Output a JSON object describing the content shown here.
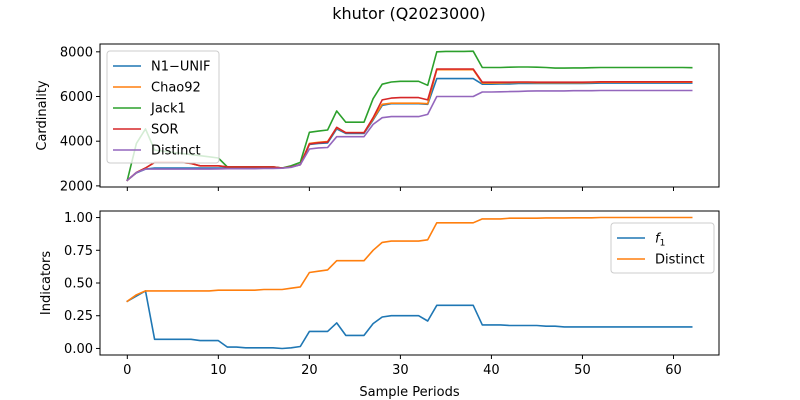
{
  "title": "khutor (Q2023000)",
  "colors": {
    "blue": "#1f77b4",
    "orange": "#ff7f0e",
    "green": "#2ca02c",
    "red": "#d62728",
    "purple": "#9467bd"
  },
  "chart_data": [
    {
      "type": "line",
      "xlabel": "",
      "ylabel": "Cardinality",
      "xlim": [
        -3,
        65
      ],
      "ylim": [
        1950,
        8350
      ],
      "xticks": [
        0,
        10,
        20,
        30,
        40,
        50,
        60
      ],
      "yticks": [
        2000,
        4000,
        6000,
        8000
      ],
      "legend": "top-left",
      "grid": false,
      "series": [
        {
          "name": "N1−UNIF",
          "color": "#1f77b4",
          "x": [
            0,
            1,
            2,
            3,
            4,
            5,
            6,
            7,
            8,
            9,
            10,
            11,
            12,
            13,
            14,
            15,
            16,
            17,
            18,
            19,
            20,
            21,
            22,
            23,
            24,
            25,
            26,
            27,
            28,
            29,
            30,
            31,
            32,
            33,
            34,
            35,
            36,
            37,
            38,
            39,
            40,
            41,
            42,
            43,
            44,
            45,
            46,
            47,
            48,
            49,
            50,
            51,
            52,
            53,
            54,
            55,
            56,
            57,
            58,
            59,
            60,
            61,
            62
          ],
          "y": [
            2250,
            2580,
            2750,
            2800,
            2800,
            2800,
            2800,
            2800,
            2800,
            2800,
            2800,
            2800,
            2800,
            2800,
            2800,
            2800,
            2800,
            2800,
            2850,
            2950,
            3850,
            3900,
            3920,
            4550,
            4350,
            4350,
            4350,
            4950,
            5600,
            5680,
            5680,
            5680,
            5680,
            5650,
            6800,
            6800,
            6800,
            6800,
            6800,
            6550,
            6550,
            6560,
            6560,
            6580,
            6580,
            6580,
            6580,
            6580,
            6580,
            6580,
            6580,
            6590,
            6600,
            6600,
            6600,
            6600,
            6600,
            6600,
            6600,
            6600,
            6600,
            6600,
            6600
          ]
        },
        {
          "name": "Chao92",
          "color": "#ff7f0e",
          "x": [
            0,
            1,
            2,
            3,
            4,
            5,
            6,
            7,
            8,
            9,
            10,
            11,
            12,
            13,
            14,
            15,
            16,
            17,
            18,
            19,
            20,
            21,
            22,
            23,
            24,
            25,
            26,
            27,
            28,
            29,
            30,
            31,
            32,
            33,
            34,
            35,
            36,
            37,
            38,
            39,
            40,
            41,
            42,
            43,
            44,
            45,
            46,
            47,
            48,
            49,
            50,
            51,
            52,
            53,
            54,
            55,
            56,
            57,
            58,
            59,
            60,
            61,
            62
          ],
          "y": [
            2250,
            2600,
            2800,
            3050,
            3050,
            3050,
            3050,
            3000,
            2900,
            2900,
            2900,
            2850,
            2850,
            2850,
            2850,
            2850,
            2850,
            2800,
            2850,
            2950,
            3900,
            3950,
            3980,
            4600,
            4380,
            4380,
            4380,
            5000,
            5650,
            5700,
            5700,
            5700,
            5700,
            5680,
            7200,
            7200,
            7200,
            7200,
            7200,
            6600,
            6600,
            6610,
            6620,
            6630,
            6630,
            6620,
            6620,
            6620,
            6620,
            6620,
            6620,
            6630,
            6640,
            6640,
            6640,
            6640,
            6640,
            6640,
            6640,
            6640,
            6640,
            6640,
            6640
          ]
        },
        {
          "name": "Jack1",
          "color": "#2ca02c",
          "x": [
            0,
            1,
            2,
            3,
            4,
            5,
            6,
            7,
            8,
            9,
            10,
            11,
            12,
            13,
            14,
            15,
            16,
            17,
            18,
            19,
            20,
            21,
            22,
            23,
            24,
            25,
            26,
            27,
            28,
            29,
            30,
            31,
            32,
            33,
            34,
            35,
            36,
            37,
            38,
            39,
            40,
            41,
            42,
            43,
            44,
            45,
            46,
            47,
            48,
            49,
            50,
            51,
            52,
            53,
            54,
            55,
            56,
            57,
            58,
            59,
            60,
            61,
            62
          ],
          "y": [
            2250,
            3900,
            4550,
            3600,
            3550,
            3500,
            3450,
            3400,
            3350,
            3300,
            3250,
            2850,
            2850,
            2850,
            2850,
            2850,
            2850,
            2800,
            2900,
            3050,
            4400,
            4450,
            4500,
            5350,
            4850,
            4850,
            4850,
            5900,
            6550,
            6650,
            6680,
            6680,
            6680,
            6500,
            8000,
            8020,
            8020,
            8020,
            8030,
            7300,
            7300,
            7300,
            7310,
            7320,
            7320,
            7310,
            7300,
            7270,
            7270,
            7280,
            7280,
            7290,
            7300,
            7300,
            7300,
            7300,
            7300,
            7300,
            7300,
            7300,
            7300,
            7300,
            7290
          ]
        },
        {
          "name": "SOR",
          "color": "#d62728",
          "x": [
            0,
            1,
            2,
            3,
            4,
            5,
            6,
            7,
            8,
            9,
            10,
            11,
            12,
            13,
            14,
            15,
            16,
            17,
            18,
            19,
            20,
            21,
            22,
            23,
            24,
            25,
            26,
            27,
            28,
            29,
            30,
            31,
            32,
            33,
            34,
            35,
            36,
            37,
            38,
            39,
            40,
            41,
            42,
            43,
            44,
            45,
            46,
            47,
            48,
            49,
            50,
            51,
            52,
            53,
            54,
            55,
            56,
            57,
            58,
            59,
            60,
            61,
            62
          ],
          "y": [
            2250,
            2600,
            2800,
            3050,
            3050,
            3050,
            3050,
            3000,
            2900,
            2900,
            2900,
            2850,
            2850,
            2850,
            2850,
            2850,
            2850,
            2800,
            2850,
            2950,
            3880,
            3930,
            3960,
            4620,
            4380,
            4380,
            4380,
            5050,
            5850,
            5930,
            5950,
            5950,
            5950,
            5850,
            7230,
            7230,
            7230,
            7230,
            7230,
            6640,
            6640,
            6640,
            6640,
            6650,
            6650,
            6640,
            6640,
            6640,
            6640,
            6640,
            6640,
            6650,
            6660,
            6660,
            6660,
            6660,
            6660,
            6660,
            6660,
            6660,
            6660,
            6660,
            6660
          ]
        },
        {
          "name": "Distinct",
          "color": "#9467bd",
          "x": [
            0,
            1,
            2,
            3,
            4,
            5,
            6,
            7,
            8,
            9,
            10,
            11,
            12,
            13,
            14,
            15,
            16,
            17,
            18,
            19,
            20,
            21,
            22,
            23,
            24,
            25,
            26,
            27,
            28,
            29,
            30,
            31,
            32,
            33,
            34,
            35,
            36,
            37,
            38,
            39,
            40,
            41,
            42,
            43,
            44,
            45,
            46,
            47,
            48,
            49,
            50,
            51,
            52,
            53,
            54,
            55,
            56,
            57,
            58,
            59,
            60,
            61,
            62
          ],
          "y": [
            2250,
            2600,
            2750,
            2750,
            2750,
            2750,
            2750,
            2750,
            2750,
            2750,
            2760,
            2770,
            2770,
            2770,
            2770,
            2780,
            2780,
            2790,
            2830,
            2950,
            3650,
            3700,
            3720,
            4200,
            4200,
            4200,
            4200,
            4750,
            5050,
            5100,
            5100,
            5100,
            5100,
            5200,
            6000,
            6000,
            6000,
            6000,
            6000,
            6200,
            6200,
            6210,
            6220,
            6230,
            6240,
            6250,
            6250,
            6250,
            6250,
            6260,
            6260,
            6260,
            6270,
            6270,
            6270,
            6270,
            6270,
            6270,
            6270,
            6270,
            6270,
            6270,
            6270
          ]
        }
      ]
    },
    {
      "type": "line",
      "xlabel": "Sample Periods",
      "ylabel": "Indicators",
      "xlim": [
        -3,
        65
      ],
      "ylim": [
        -0.05,
        1.05
      ],
      "xticks": [
        0,
        10,
        20,
        30,
        40,
        50,
        60
      ],
      "yticks": [
        0.0,
        0.25,
        0.5,
        0.75,
        1.0
      ],
      "ytick_labels": [
        "0.00",
        "0.25",
        "0.50",
        "0.75",
        "1.00"
      ],
      "legend": "top-right",
      "grid": false,
      "series": [
        {
          "name": "f1",
          "label_main": "f",
          "label_sub": "1",
          "color": "#1f77b4",
          "x": [
            0,
            1,
            2,
            3,
            4,
            5,
            6,
            7,
            8,
            9,
            10,
            11,
            12,
            13,
            14,
            15,
            16,
            17,
            18,
            19,
            20,
            21,
            22,
            23,
            24,
            25,
            26,
            27,
            28,
            29,
            30,
            31,
            32,
            33,
            34,
            35,
            36,
            37,
            38,
            39,
            40,
            41,
            42,
            43,
            44,
            45,
            46,
            47,
            48,
            49,
            50,
            51,
            52,
            53,
            54,
            55,
            56,
            57,
            58,
            59,
            60,
            61,
            62
          ],
          "y": [
            0.36,
            0.4,
            0.44,
            0.07,
            0.07,
            0.07,
            0.07,
            0.07,
            0.06,
            0.06,
            0.06,
            0.01,
            0.01,
            0.005,
            0.005,
            0.005,
            0.005,
            0.0,
            0.005,
            0.015,
            0.13,
            0.13,
            0.13,
            0.195,
            0.1,
            0.1,
            0.1,
            0.19,
            0.24,
            0.25,
            0.25,
            0.25,
            0.25,
            0.21,
            0.33,
            0.33,
            0.33,
            0.33,
            0.33,
            0.18,
            0.18,
            0.18,
            0.175,
            0.175,
            0.175,
            0.175,
            0.17,
            0.17,
            0.165,
            0.165,
            0.165,
            0.165,
            0.165,
            0.165,
            0.165,
            0.165,
            0.165,
            0.165,
            0.165,
            0.165,
            0.165,
            0.165,
            0.165
          ]
        },
        {
          "name": "Distinct",
          "color": "#ff7f0e",
          "x": [
            0,
            1,
            2,
            3,
            4,
            5,
            6,
            7,
            8,
            9,
            10,
            11,
            12,
            13,
            14,
            15,
            16,
            17,
            18,
            19,
            20,
            21,
            22,
            23,
            24,
            25,
            26,
            27,
            28,
            29,
            30,
            31,
            32,
            33,
            34,
            35,
            36,
            37,
            38,
            39,
            40,
            41,
            42,
            43,
            44,
            45,
            46,
            47,
            48,
            49,
            50,
            51,
            52,
            53,
            54,
            55,
            56,
            57,
            58,
            59,
            60,
            61,
            62
          ],
          "y": [
            0.36,
            0.41,
            0.44,
            0.44,
            0.44,
            0.44,
            0.44,
            0.44,
            0.44,
            0.44,
            0.445,
            0.445,
            0.445,
            0.445,
            0.445,
            0.45,
            0.45,
            0.45,
            0.46,
            0.47,
            0.58,
            0.59,
            0.6,
            0.67,
            0.67,
            0.67,
            0.67,
            0.75,
            0.81,
            0.82,
            0.82,
            0.82,
            0.82,
            0.83,
            0.96,
            0.96,
            0.96,
            0.96,
            0.96,
            0.99,
            0.99,
            0.99,
            0.995,
            0.995,
            0.995,
            0.995,
            0.997,
            0.997,
            0.997,
            0.998,
            0.998,
            0.998,
            1.0,
            1.0,
            1.0,
            1.0,
            1.0,
            1.0,
            1.0,
            1.0,
            1.0,
            1.0,
            1.0
          ]
        }
      ]
    }
  ]
}
